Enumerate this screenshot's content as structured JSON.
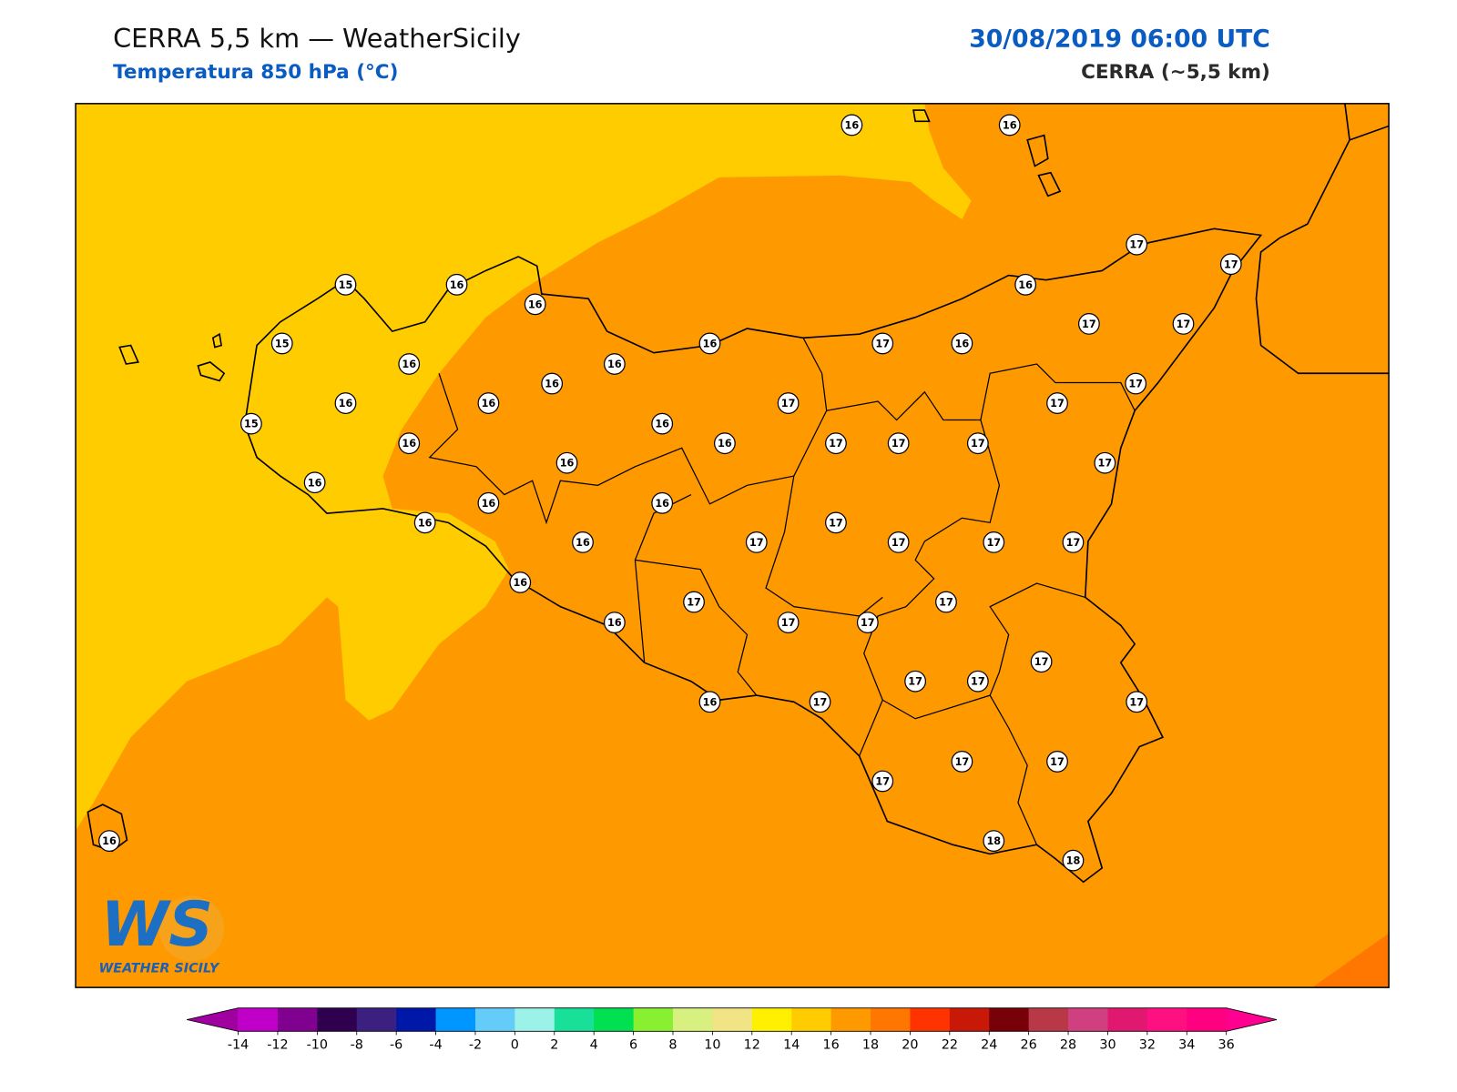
{
  "header": {
    "title": "CERRA 5,5 km — WeatherSicily",
    "subtitle": "Temperatura 850 hPa (°C)",
    "date": "30/08/2019 06:00 UTC",
    "model": "CERRA (~5,5 km)"
  },
  "map": {
    "field_colors": {
      "low": "#ffcc00",
      "mid": "#ff9900",
      "high": "#ff7700"
    },
    "stations": [
      16,
      16,
      17,
      17,
      16,
      17,
      17,
      15,
      16,
      16,
      15,
      16,
      16,
      16,
      17,
      16,
      16,
      17,
      16,
      16,
      17,
      17,
      15,
      16,
      16,
      16,
      17,
      17,
      17,
      16,
      17,
      16,
      16,
      16,
      16,
      17,
      16,
      17,
      17,
      17,
      17,
      16,
      17,
      17,
      16,
      17,
      17,
      17,
      17,
      17,
      16,
      17,
      17,
      17,
      17,
      17,
      16,
      18,
      18
    ]
  },
  "logo": {
    "mark": "WS",
    "text": "WEATHER SICILY"
  },
  "colorbar": {
    "ticks": [
      -14,
      -12,
      -10,
      -8,
      -6,
      -4,
      -2,
      0,
      2,
      4,
      6,
      8,
      10,
      12,
      14,
      16,
      18,
      20,
      22,
      24,
      26,
      28,
      30,
      32,
      34,
      36
    ],
    "colors": [
      "#c000c8",
      "#800090",
      "#300050",
      "#3c2080",
      "#0018a8",
      "#0096ff",
      "#64ccf8",
      "#9cf2e8",
      "#18e098",
      "#00e050",
      "#88f030",
      "#d8f080",
      "#f0e484",
      "#fff000",
      "#ffcc00",
      "#ff9900",
      "#ff7700",
      "#ff3300",
      "#c81808",
      "#780008",
      "#b83848",
      "#d04080",
      "#e01870",
      "#ff1080",
      "#ff0080"
    ],
    "under": "#a000a0",
    "over": "#ff0090"
  }
}
